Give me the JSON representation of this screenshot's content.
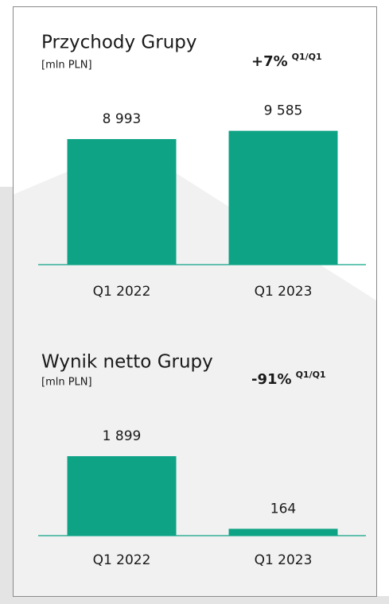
{
  "chart_data": [
    {
      "type": "bar",
      "title": "Przychody Grupy",
      "subtitle": "[mln PLN]",
      "annotation": "+7%",
      "annotation_sup": "Q1/Q1",
      "categories": [
        "Q1 2022",
        "Q1 2023"
      ],
      "values": [
        8993,
        9585
      ],
      "value_labels": [
        "8 993",
        "9 585"
      ],
      "color": "#0fa386"
    },
    {
      "type": "bar",
      "title": "Wynik netto Grupy",
      "subtitle": "[mln PLN]",
      "annotation": "-91%",
      "annotation_sup": "Q1/Q1",
      "categories": [
        "Q1 2022",
        "Q1 2023"
      ],
      "values": [
        1899,
        164
      ],
      "value_labels": [
        "1 899",
        "164"
      ],
      "color": "#0fa386"
    }
  ]
}
